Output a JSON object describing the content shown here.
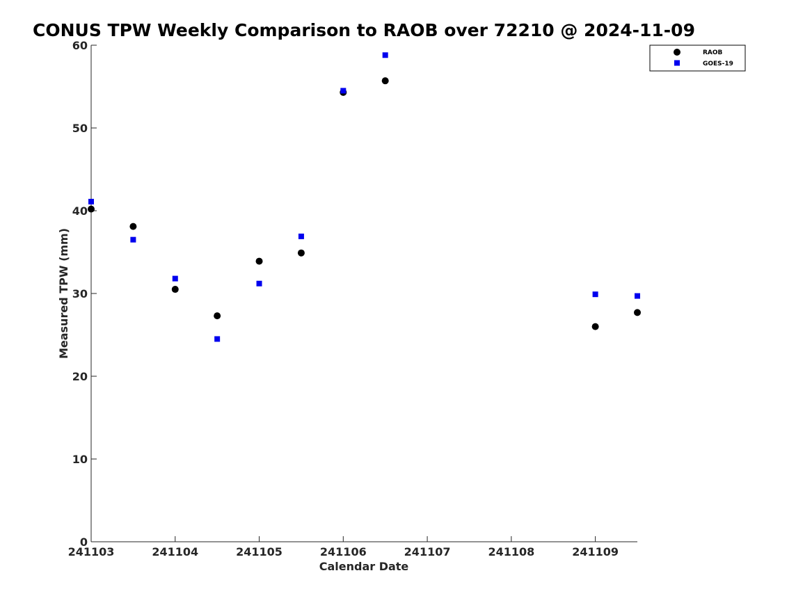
{
  "chart_data": {
    "type": "scatter",
    "title": "CONUS TPW Weekly Comparison to RAOB over 72210 @ 2024-11-09",
    "xlabel": "Calendar Date",
    "ylabel": "Measured TPW (mm)",
    "x_ticks": [
      "241103",
      "241104",
      "241105",
      "241106",
      "241107",
      "241108",
      "241109"
    ],
    "y_ticks": [
      "0",
      "10",
      "20",
      "30",
      "40",
      "50",
      "60"
    ],
    "xlim": [
      "241103",
      "241109 12Z"
    ],
    "ylim": [
      0,
      60
    ],
    "grid": false,
    "legend_position": "top-right",
    "series": [
      {
        "name": "RAOB",
        "marker": "circle",
        "color": "#000000",
        "points": [
          {
            "x": "241103 00Z",
            "y": 40.2
          },
          {
            "x": "241103 12Z",
            "y": 38.1
          },
          {
            "x": "241104 00Z",
            "y": 30.5
          },
          {
            "x": "241104 12Z",
            "y": 27.3
          },
          {
            "x": "241105 00Z",
            "y": 33.9
          },
          {
            "x": "241105 12Z",
            "y": 34.9
          },
          {
            "x": "241106 00Z",
            "y": 54.3
          },
          {
            "x": "241106 12Z",
            "y": 55.7
          },
          {
            "x": "241109 00Z",
            "y": 26.0
          },
          {
            "x": "241109 12Z",
            "y": 27.7
          }
        ]
      },
      {
        "name": "GOES-19",
        "marker": "square",
        "color": "#0000ee",
        "points": [
          {
            "x": "241103 00Z",
            "y": 41.1
          },
          {
            "x": "241103 12Z",
            "y": 36.5
          },
          {
            "x": "241104 00Z",
            "y": 31.8
          },
          {
            "x": "241104 12Z",
            "y": 24.5
          },
          {
            "x": "241105 00Z",
            "y": 31.2
          },
          {
            "x": "241105 12Z",
            "y": 36.9
          },
          {
            "x": "241106 00Z",
            "y": 54.5
          },
          {
            "x": "241106 12Z",
            "y": 58.8
          },
          {
            "x": "241109 00Z",
            "y": 29.9
          },
          {
            "x": "241109 12Z",
            "y": 29.7
          }
        ]
      }
    ]
  }
}
